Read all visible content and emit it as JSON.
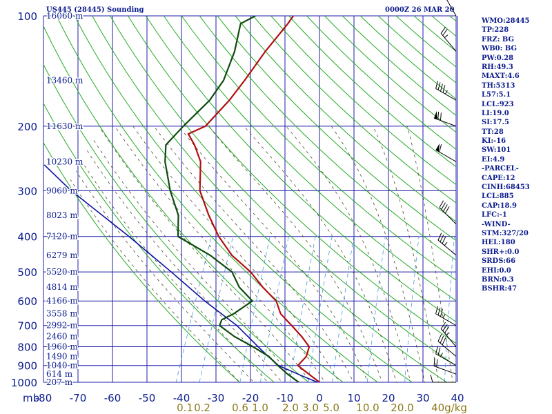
{
  "header": {
    "station": "US445 (28445) Sounding",
    "valid_time": "0000Z 26 MAR 20"
  },
  "indices": [
    "WMO:28445",
    "TP:228",
    "FRZ: BG",
    "WB0: BG",
    "PW:0.28",
    "RH:49.3",
    "MAXT:4.6",
    "TH:5313",
    "L57:5.1",
    "LCL:923",
    "LI:19.0",
    "SI:17.5",
    "TT:28",
    "KI:-16",
    "SW:101",
    "EI:4.9",
    "-PARCEL-",
    "CAPE:12",
    "CINH:68453",
    "LCL:885",
    "CAP:18.9",
    "LFC:-1",
    "-WIND-",
    "STM:327/20",
    "HEL:180",
    "SHR+:0.0",
    "SRDS:66",
    "EHI:0.0",
    "BRN:0.3",
    "BSHR:47"
  ],
  "colors": {
    "background": "#ffffff",
    "grid": "#1c1ca8",
    "dry_adiabat": "#22aa22",
    "moist_adiabat": "#4a4a2a",
    "mixing_ratio": "#4499dd",
    "temperature": "#b01010",
    "dewpoint": "#0e4a0e",
    "parcel": "#0a10a0",
    "wind": "#000000",
    "mixing_label": "#8a7a1a",
    "text": "#0a1a8c"
  },
  "chart_data": {
    "type": "skew-t log-p sounding",
    "x_label": "mb",
    "pressure_levels": [
      100,
      200,
      300,
      400,
      500,
      600,
      700,
      800,
      900,
      1000
    ],
    "pressure_tick_labels": [
      "100",
      "200",
      "300",
      "400",
      "500",
      "600",
      "700",
      "800",
      "900",
      "1000"
    ],
    "temperature_ticks": [
      -80,
      -70,
      -60,
      -50,
      -40,
      -30,
      -20,
      -10,
      0,
      10,
      20,
      30,
      40
    ],
    "temperature_tick_labels": [
      "-80",
      "-70",
      "-60",
      "-50",
      "-40",
      "-30",
      "-20",
      "-10",
      "0",
      "10",
      "20",
      "30",
      "40"
    ],
    "height_labels": [
      {
        "p": 100,
        "text": "16060 m"
      },
      {
        "p": 150,
        "text": "13460 m"
      },
      {
        "p": 200,
        "text": "11630 m"
      },
      {
        "p": 250,
        "text": "10230 m"
      },
      {
        "p": 300,
        "text": "9060 m"
      },
      {
        "p": 350,
        "text": "8023 m"
      },
      {
        "p": 400,
        "text": "7120 m"
      },
      {
        "p": 450,
        "text": "6279 m"
      },
      {
        "p": 500,
        "text": "5520 m"
      },
      {
        "p": 550,
        "text": "4814 m"
      },
      {
        "p": 600,
        "text": "4166 m"
      },
      {
        "p": 650,
        "text": "3558 m"
      },
      {
        "p": 700,
        "text": "2992 m"
      },
      {
        "p": 750,
        "text": "2460 m"
      },
      {
        "p": 800,
        "text": "1960 m"
      },
      {
        "p": 850,
        "text": "1490 m"
      },
      {
        "p": 900,
        "text": "1040 m"
      },
      {
        "p": 950,
        "text": "614 m"
      },
      {
        "p": 1000,
        "text": "207 m"
      }
    ],
    "mixing_ratio_lines": [
      0.1,
      0.2,
      0.6,
      1.0,
      2.0,
      3.0,
      5.0,
      10.0,
      20.0,
      40.0
    ],
    "mixing_ratio_labels": [
      "0.1",
      "0.2",
      "0.6",
      "1.0",
      "2.0",
      "3.0",
      "5.0",
      "10.0",
      "20.0",
      "40g/kg"
    ],
    "temperature": [
      {
        "p": 1000,
        "t": 0.0
      },
      {
        "p": 950,
        "t": -4.1
      },
      {
        "p": 900,
        "t": -8.4
      },
      {
        "p": 850,
        "t": -7.1
      },
      {
        "p": 800,
        "t": -7.5
      },
      {
        "p": 750,
        "t": -11.0
      },
      {
        "p": 700,
        "t": -15.3
      },
      {
        "p": 650,
        "t": -20.0
      },
      {
        "p": 600,
        "t": -22.9
      },
      {
        "p": 550,
        "t": -28.6
      },
      {
        "p": 500,
        "t": -34.0
      },
      {
        "p": 450,
        "t": -41.6
      },
      {
        "p": 400,
        "t": -47.8
      },
      {
        "p": 350,
        "t": -53.4
      },
      {
        "p": 300,
        "t": -59.1
      },
      {
        "p": 250,
        "t": -62.6
      },
      {
        "p": 225,
        "t": -66.5
      },
      {
        "p": 210,
        "t": -69.7
      },
      {
        "p": 200,
        "t": -65.7
      },
      {
        "p": 170,
        "t": -62.1
      },
      {
        "p": 150,
        "t": -60.2
      },
      {
        "p": 125,
        "t": -57.9
      },
      {
        "p": 105,
        "t": -54.9
      },
      {
        "p": 100,
        "t": -54.3
      }
    ],
    "dewpoint": [
      {
        "p": 1000,
        "t": -6.0
      },
      {
        "p": 950,
        "t": -10.3
      },
      {
        "p": 900,
        "t": -14.2
      },
      {
        "p": 850,
        "t": -18.0
      },
      {
        "p": 800,
        "t": -23.8
      },
      {
        "p": 750,
        "t": -30.5
      },
      {
        "p": 700,
        "t": -36.2
      },
      {
        "p": 675,
        "t": -36.3
      },
      {
        "p": 650,
        "t": -33.6
      },
      {
        "p": 600,
        "t": -29.8
      },
      {
        "p": 550,
        "t": -35.4
      },
      {
        "p": 500,
        "t": -39.4
      },
      {
        "p": 450,
        "t": -47.9
      },
      {
        "p": 400,
        "t": -59.6
      },
      {
        "p": 350,
        "t": -62.2
      },
      {
        "p": 300,
        "t": -67.7
      },
      {
        "p": 250,
        "t": -72.9
      },
      {
        "p": 225,
        "t": -74.8
      },
      {
        "p": 200,
        "t": -72.1
      },
      {
        "p": 170,
        "t": -67.8
      },
      {
        "p": 150,
        "t": -66.3
      },
      {
        "p": 125,
        "t": -66.8
      },
      {
        "p": 105,
        "t": -68.6
      },
      {
        "p": 100,
        "t": -65.3
      }
    ],
    "parcel": [
      {
        "p": 1000,
        "t": -0.6
      },
      {
        "p": 950,
        "t": -7.3
      },
      {
        "p": 900,
        "t": -14.0
      },
      {
        "p": 850,
        "t": -18.2
      },
      {
        "p": 800,
        "t": -22.3
      },
      {
        "p": 700,
        "t": -31.2
      },
      {
        "p": 600,
        "t": -43.6
      },
      {
        "p": 500,
        "t": -57.0
      },
      {
        "p": 400,
        "t": -73.8
      },
      {
        "p": 300,
        "t": -96.4
      },
      {
        "p": 255,
        "t": -107.5
      }
    ],
    "wind": [
      {
        "p": 1000,
        "dir": 270,
        "kt": 10
      },
      {
        "p": 950,
        "dir": 290,
        "kt": 20
      },
      {
        "p": 900,
        "dir": 300,
        "kt": 25
      },
      {
        "p": 850,
        "dir": 310,
        "kt": 30
      },
      {
        "p": 800,
        "dir": 320,
        "kt": 35
      },
      {
        "p": 700,
        "dir": 300,
        "kt": 35
      },
      {
        "p": 450,
        "dir": 310,
        "kt": 35
      },
      {
        "p": 370,
        "dir": 315,
        "kt": 40
      },
      {
        "p": 250,
        "dir": 300,
        "kt": 60
      },
      {
        "p": 200,
        "dir": 290,
        "kt": 70
      },
      {
        "p": 170,
        "dir": 300,
        "kt": 45
      },
      {
        "p": 125,
        "dir": 320,
        "kt": 25
      },
      {
        "p": 100,
        "dir": 330,
        "kt": 20
      }
    ]
  }
}
